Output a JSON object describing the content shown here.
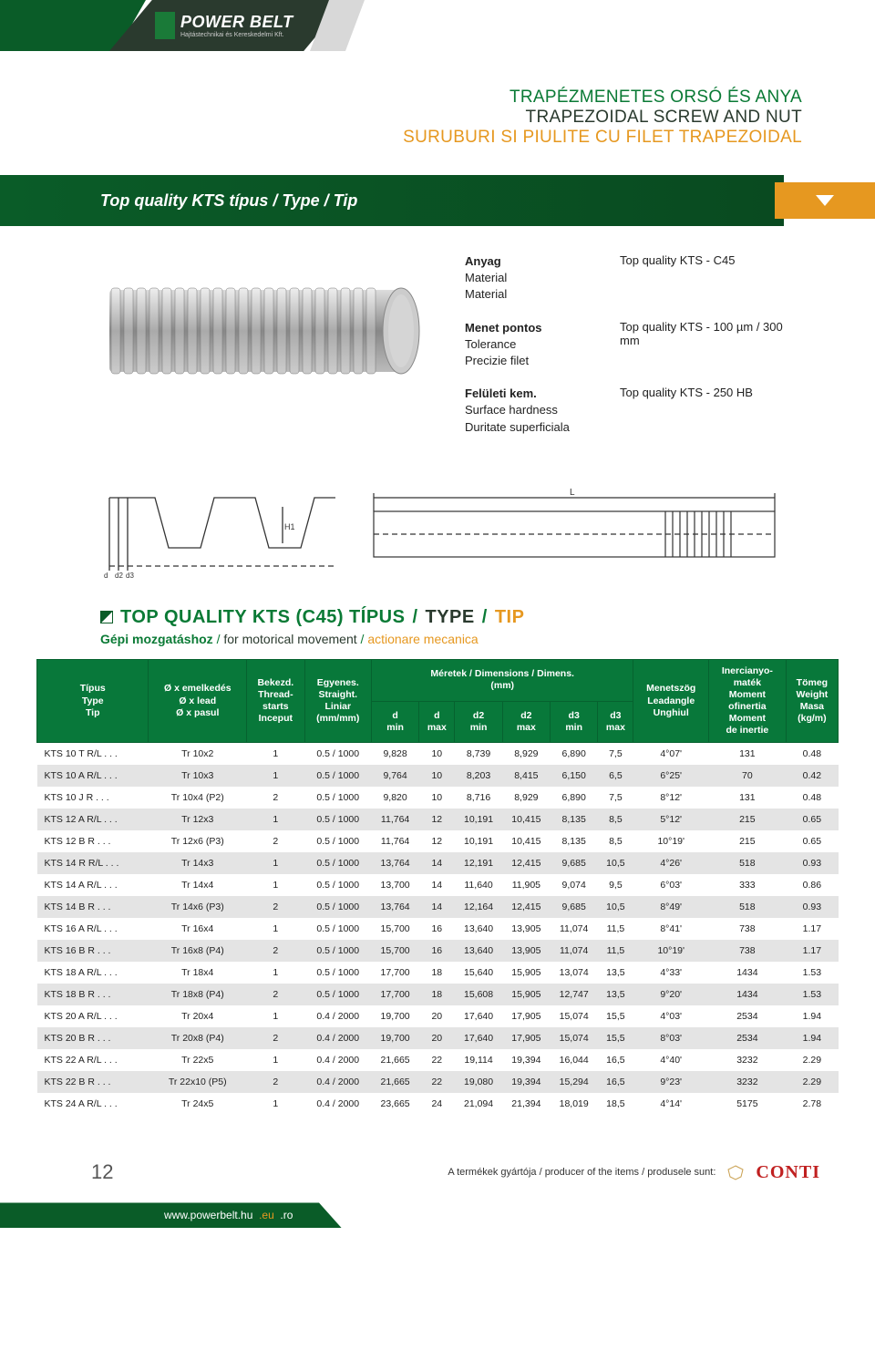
{
  "brand": {
    "name": "POWER BELT",
    "tagline": "Hajtástechnikai és Kereskedelmi Kft."
  },
  "titles": {
    "hu": "TRAPÉZMENETES ORSÓ ÉS ANYA",
    "en": "TRAPEZOIDAL SCREW AND NUT",
    "ro": "SURUBURI SI PIULITE CU FILET TRAPEZOIDAL"
  },
  "band": "Top quality KTS típus / Type / Tip",
  "info": [
    {
      "l1": "Anyag",
      "l2": "Material",
      "l3": "Material",
      "r": "Top quality KTS - C45"
    },
    {
      "l1": "Menet pontos",
      "l2": "Tolerance",
      "l3": "Precizie filet",
      "r": "Top quality KTS - 100 µm / 300 mm"
    },
    {
      "l1": "Felületi kem.",
      "l2": "Surface hardness",
      "l3": "Duritate superficiala",
      "r": "Top quality KTS - 250 HB"
    }
  ],
  "section": {
    "prefix": "TOP QUALITY KTS (C45) TÍPUS",
    "mid": "TYPE",
    "suffix": "TIP",
    "sep": " / ",
    "sub_hu": "Gépi mozgatáshoz",
    "sub_en": "for motorical movement",
    "sub_ro": "actionare mecanica"
  },
  "table": {
    "headers": {
      "type": "Típus\nType\nTip",
      "lead": "Ø x emelkedés\nØ x lead\nØ x pasul",
      "starts": "Bekezd.\nThread-\nstarts\nInceput",
      "straight": "Egyenes.\nStraight.\nLiniar\n(mm/mm)",
      "dims_top": "Méretek / Dimensions / Dimens.\n(mm)",
      "d_min": "d\nmin",
      "d_max": "d\nmax",
      "d2_min": "d2\nmin",
      "d2_max": "d2\nmax",
      "d3_min": "d3\nmin",
      "d3_max": "d3\nmax",
      "angle": "Menetszög\nLeadangle\nUnghiul",
      "inertia": "Inercianyo-\nmaték\nMoment\nofinertia\nMoment\nde inertie",
      "weight": "Tömeg\nWeight\nMasa\n(kg/m)"
    },
    "rows": [
      [
        "KTS 10 T R/L . . .",
        "Tr 10x2",
        "1",
        "0.5 / 1000",
        "9,828",
        "10",
        "8,739",
        "8,929",
        "6,890",
        "7,5",
        "4°07'",
        "131",
        "0.48"
      ],
      [
        "KTS 10 A R/L . . .",
        "Tr 10x3",
        "1",
        "0.5 / 1000",
        "9,764",
        "10",
        "8,203",
        "8,415",
        "6,150",
        "6,5",
        "6°25'",
        "70",
        "0.42"
      ],
      [
        "KTS 10 J R . . .",
        "Tr 10x4 (P2)",
        "2",
        "0.5 / 1000",
        "9,820",
        "10",
        "8,716",
        "8,929",
        "6,890",
        "7,5",
        "8°12'",
        "131",
        "0.48"
      ],
      [
        "KTS 12 A R/L . . .",
        "Tr 12x3",
        "1",
        "0.5 / 1000",
        "11,764",
        "12",
        "10,191",
        "10,415",
        "8,135",
        "8,5",
        "5°12'",
        "215",
        "0.65"
      ],
      [
        "KTS 12 B R . . .",
        "Tr 12x6 (P3)",
        "2",
        "0.5 / 1000",
        "11,764",
        "12",
        "10,191",
        "10,415",
        "8,135",
        "8,5",
        "10°19'",
        "215",
        "0.65"
      ],
      [
        "KTS 14 R R/L . . .",
        "Tr 14x3",
        "1",
        "0.5 / 1000",
        "13,764",
        "14",
        "12,191",
        "12,415",
        "9,685",
        "10,5",
        "4°26'",
        "518",
        "0.93"
      ],
      [
        "KTS 14 A R/L . . .",
        "Tr 14x4",
        "1",
        "0.5 / 1000",
        "13,700",
        "14",
        "11,640",
        "11,905",
        "9,074",
        "9,5",
        "6°03'",
        "333",
        "0.86"
      ],
      [
        "KTS 14 B R . . .",
        "Tr 14x6 (P3)",
        "2",
        "0.5 / 1000",
        "13,764",
        "14",
        "12,164",
        "12,415",
        "9,685",
        "10,5",
        "8°49'",
        "518",
        "0.93"
      ],
      [
        "KTS 16 A R/L . . .",
        "Tr 16x4",
        "1",
        "0.5 / 1000",
        "15,700",
        "16",
        "13,640",
        "13,905",
        "11,074",
        "11,5",
        "8°41'",
        "738",
        "1.17"
      ],
      [
        "KTS 16 B R . . .",
        "Tr 16x8 (P4)",
        "2",
        "0.5 / 1000",
        "15,700",
        "16",
        "13,640",
        "13,905",
        "11,074",
        "11,5",
        "10°19'",
        "738",
        "1.17"
      ],
      [
        "KTS 18 A R/L . . .",
        "Tr 18x4",
        "1",
        "0.5 / 1000",
        "17,700",
        "18",
        "15,640",
        "15,905",
        "13,074",
        "13,5",
        "4°33'",
        "1434",
        "1.53"
      ],
      [
        "KTS 18 B R . . .",
        "Tr 18x8 (P4)",
        "2",
        "0.5 / 1000",
        "17,700",
        "18",
        "15,608",
        "15,905",
        "12,747",
        "13,5",
        "9°20'",
        "1434",
        "1.53"
      ],
      [
        "KTS 20 A R/L . . .",
        "Tr 20x4",
        "1",
        "0.4 / 2000",
        "19,700",
        "20",
        "17,640",
        "17,905",
        "15,074",
        "15,5",
        "4°03'",
        "2534",
        "1.94"
      ],
      [
        "KTS 20 B R . . .",
        "Tr 20x8 (P4)",
        "2",
        "0.4 / 2000",
        "19,700",
        "20",
        "17,640",
        "17,905",
        "15,074",
        "15,5",
        "8°03'",
        "2534",
        "1.94"
      ],
      [
        "KTS 22 A R/L . . .",
        "Tr 22x5",
        "1",
        "0.4 / 2000",
        "21,665",
        "22",
        "19,114",
        "19,394",
        "16,044",
        "16,5",
        "4°40'",
        "3232",
        "2.29"
      ],
      [
        "KTS 22 B R . . .",
        "Tr 22x10 (P5)",
        "2",
        "0.4 / 2000",
        "21,665",
        "22",
        "19,080",
        "19,394",
        "15,294",
        "16,5",
        "9°23'",
        "3232",
        "2.29"
      ],
      [
        "KTS 24 A R/L . . .",
        "Tr 24x5",
        "1",
        "0.4 / 2000",
        "23,665",
        "24",
        "21,094",
        "21,394",
        "18,019",
        "18,5",
        "4°14'",
        "5175",
        "2.78"
      ]
    ]
  },
  "footer": {
    "page": "12",
    "producer": "A termékek gyártója / producer of the items / produsele sunt:",
    "conti": "CONTI",
    "url1": "www.powerbelt.hu",
    "url2": ".eu",
    "url3": ".ro"
  },
  "colors": {
    "green": "#0a7a35",
    "darkgreen": "#0a5c28",
    "dark": "#2a3a2e",
    "orange": "#e69820",
    "thead": "#08783a"
  }
}
